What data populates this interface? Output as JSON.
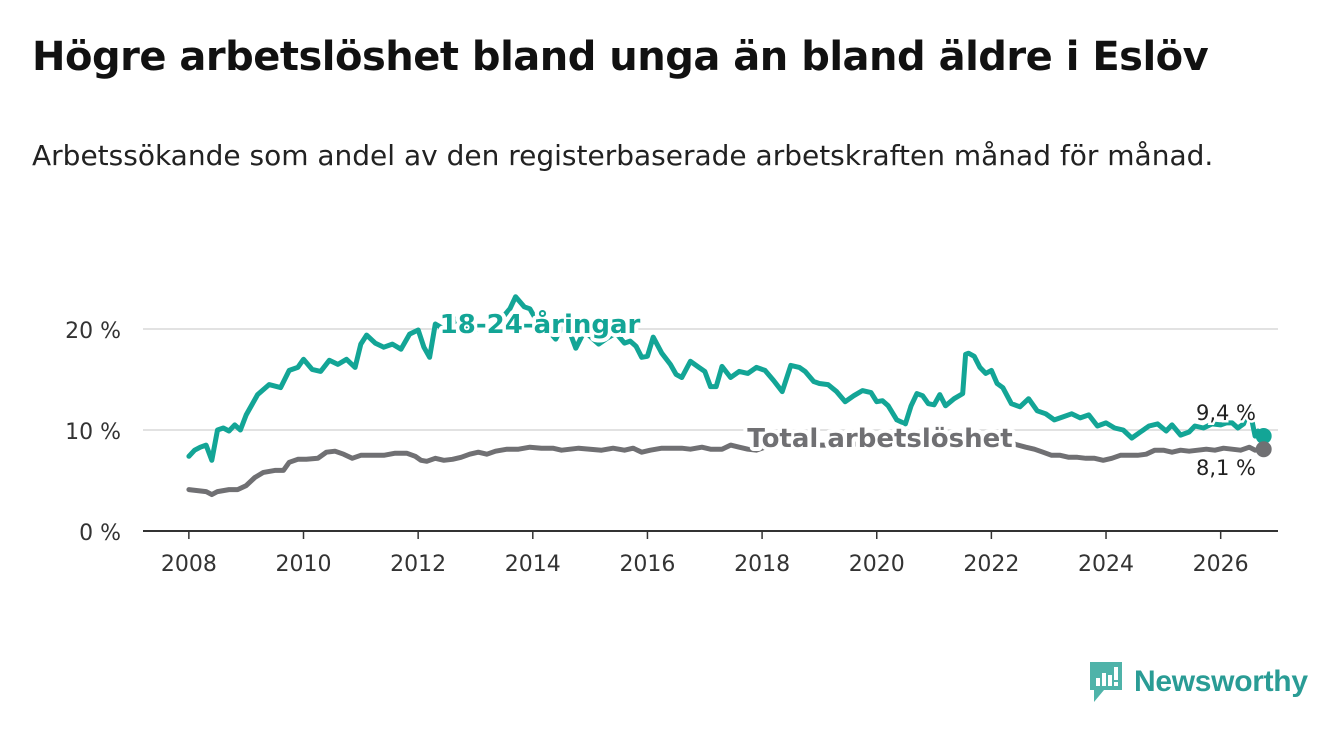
{
  "header": {
    "title": "Högre arbetslöshet bland unga än bland äldre i Eslöv",
    "subtitle": "Arbetssökande som andel av den registerbaserade arbetskraften månad för månad."
  },
  "brand": {
    "name": "Newsworthy"
  },
  "chart_data": {
    "type": "line",
    "x_ticks": [
      "2008",
      "2010",
      "2012",
      "2014",
      "2016",
      "2018",
      "2020",
      "2022",
      "2024",
      "2026"
    ],
    "y_ticks": [
      {
        "value": 0,
        "label": "0 %"
      },
      {
        "value": 10,
        "label": "10 %"
      },
      {
        "value": 20,
        "label": "20 %"
      }
    ],
    "xlim": [
      2007.2,
      2027.0
    ],
    "ylim": [
      0,
      20
    ],
    "series": [
      {
        "name": "18-24-åringar",
        "color": "#13a596",
        "end_label": "9,4 %",
        "points": [
          [
            2008.0,
            7.4
          ],
          [
            2008.1,
            8.0
          ],
          [
            2008.2,
            8.3
          ],
          [
            2008.3,
            8.5
          ],
          [
            2008.4,
            7.0
          ],
          [
            2008.5,
            10.0
          ],
          [
            2008.6,
            10.2
          ],
          [
            2008.7,
            9.9
          ],
          [
            2008.8,
            10.5
          ],
          [
            2008.9,
            10.0
          ],
          [
            2009.0,
            11.5
          ],
          [
            2009.2,
            13.5
          ],
          [
            2009.4,
            14.5
          ],
          [
            2009.6,
            14.2
          ],
          [
            2009.75,
            15.9
          ],
          [
            2009.9,
            16.2
          ],
          [
            2010.0,
            17.0
          ],
          [
            2010.15,
            16.0
          ],
          [
            2010.3,
            15.8
          ],
          [
            2010.45,
            16.9
          ],
          [
            2010.6,
            16.5
          ],
          [
            2010.75,
            17.0
          ],
          [
            2010.9,
            16.2
          ],
          [
            2011.0,
            18.5
          ],
          [
            2011.1,
            19.4
          ],
          [
            2011.25,
            18.6
          ],
          [
            2011.4,
            18.2
          ],
          [
            2011.55,
            18.5
          ],
          [
            2011.7,
            18.0
          ],
          [
            2011.85,
            19.5
          ],
          [
            2012.0,
            19.9
          ],
          [
            2012.1,
            18.2
          ],
          [
            2012.2,
            17.2
          ],
          [
            2012.3,
            20.5
          ],
          [
            2012.45,
            20.0
          ],
          [
            2012.6,
            21.2
          ],
          [
            2012.75,
            20.3
          ],
          [
            2012.9,
            19.8
          ],
          [
            2013.05,
            20.0
          ],
          [
            2013.2,
            20.1
          ],
          [
            2013.3,
            20.0
          ],
          [
            2013.45,
            21.0
          ],
          [
            2013.6,
            22.0
          ],
          [
            2013.7,
            23.2
          ],
          [
            2013.85,
            22.2
          ],
          [
            2013.95,
            22.0
          ],
          [
            2014.1,
            20.5
          ],
          [
            2014.25,
            20.0
          ],
          [
            2014.4,
            19.0
          ],
          [
            2014.5,
            20.1
          ],
          [
            2014.65,
            19.6
          ],
          [
            2014.75,
            18.1
          ],
          [
            2014.9,
            19.8
          ],
          [
            2015.05,
            19.0
          ],
          [
            2015.15,
            18.5
          ],
          [
            2015.3,
            19.1
          ],
          [
            2015.45,
            19.6
          ],
          [
            2015.6,
            18.6
          ],
          [
            2015.7,
            18.8
          ],
          [
            2015.8,
            18.3
          ],
          [
            2015.9,
            17.2
          ],
          [
            2016.0,
            17.3
          ],
          [
            2016.1,
            19.2
          ],
          [
            2016.25,
            17.6
          ],
          [
            2016.4,
            16.5
          ],
          [
            2016.5,
            15.5
          ],
          [
            2016.6,
            15.2
          ],
          [
            2016.75,
            16.8
          ],
          [
            2016.9,
            16.2
          ],
          [
            2017.0,
            15.8
          ],
          [
            2017.1,
            14.3
          ],
          [
            2017.2,
            14.3
          ],
          [
            2017.3,
            16.3
          ],
          [
            2017.45,
            15.2
          ],
          [
            2017.6,
            15.8
          ],
          [
            2017.75,
            15.6
          ],
          [
            2017.9,
            16.2
          ],
          [
            2018.05,
            15.9
          ],
          [
            2018.2,
            14.9
          ],
          [
            2018.35,
            13.8
          ],
          [
            2018.5,
            16.4
          ],
          [
            2018.65,
            16.2
          ],
          [
            2018.75,
            15.8
          ],
          [
            2018.9,
            14.8
          ],
          [
            2019.0,
            14.6
          ],
          [
            2019.15,
            14.5
          ],
          [
            2019.3,
            13.8
          ],
          [
            2019.45,
            12.8
          ],
          [
            2019.6,
            13.4
          ],
          [
            2019.75,
            13.9
          ],
          [
            2019.9,
            13.7
          ],
          [
            2020.0,
            12.8
          ],
          [
            2020.1,
            12.9
          ],
          [
            2020.2,
            12.4
          ],
          [
            2020.35,
            11.0
          ],
          [
            2020.5,
            10.6
          ],
          [
            2020.6,
            12.4
          ],
          [
            2020.7,
            13.6
          ],
          [
            2020.8,
            13.4
          ],
          [
            2020.9,
            12.6
          ],
          [
            2021.0,
            12.5
          ],
          [
            2021.1,
            13.5
          ],
          [
            2021.2,
            12.4
          ],
          [
            2021.35,
            13.1
          ],
          [
            2021.5,
            13.6
          ],
          [
            2021.55,
            17.5
          ],
          [
            2021.6,
            17.6
          ],
          [
            2021.7,
            17.3
          ],
          [
            2021.8,
            16.2
          ],
          [
            2021.9,
            15.6
          ],
          [
            2022.0,
            15.9
          ],
          [
            2022.1,
            14.6
          ],
          [
            2022.2,
            14.2
          ],
          [
            2022.35,
            12.6
          ],
          [
            2022.5,
            12.3
          ],
          [
            2022.65,
            13.1
          ],
          [
            2022.8,
            11.9
          ],
          [
            2022.95,
            11.6
          ],
          [
            2023.1,
            11.0
          ],
          [
            2023.25,
            11.3
          ],
          [
            2023.4,
            11.6
          ],
          [
            2023.55,
            11.2
          ],
          [
            2023.7,
            11.5
          ],
          [
            2023.85,
            10.4
          ],
          [
            2024.0,
            10.7
          ],
          [
            2024.15,
            10.2
          ],
          [
            2024.3,
            10.0
          ],
          [
            2024.45,
            9.2
          ],
          [
            2024.6,
            9.8
          ],
          [
            2024.75,
            10.4
          ],
          [
            2024.9,
            10.6
          ],
          [
            2025.05,
            9.9
          ],
          [
            2025.15,
            10.5
          ],
          [
            2025.3,
            9.5
          ],
          [
            2025.45,
            9.8
          ],
          [
            2025.55,
            10.4
          ],
          [
            2025.7,
            10.2
          ],
          [
            2025.85,
            10.6
          ],
          [
            2026.0,
            10.5
          ],
          [
            2026.1,
            10.7
          ],
          [
            2026.2,
            10.7
          ],
          [
            2026.3,
            10.2
          ],
          [
            2026.4,
            10.6
          ],
          [
            2026.5,
            12.2
          ],
          [
            2026.6,
            9.4
          ],
          [
            2026.65,
            9.9
          ],
          [
            2026.75,
            9.4
          ]
        ]
      },
      {
        "name": "Total arbetslöshet",
        "color": "#707073",
        "end_label": "8,1 %",
        "points": [
          [
            2008.0,
            4.1
          ],
          [
            2008.15,
            4.0
          ],
          [
            2008.3,
            3.9
          ],
          [
            2008.4,
            3.6
          ],
          [
            2008.5,
            3.9
          ],
          [
            2008.7,
            4.1
          ],
          [
            2008.85,
            4.1
          ],
          [
            2009.0,
            4.5
          ],
          [
            2009.15,
            5.3
          ],
          [
            2009.3,
            5.8
          ],
          [
            2009.5,
            6.0
          ],
          [
            2009.65,
            6.0
          ],
          [
            2009.75,
            6.8
          ],
          [
            2009.9,
            7.1
          ],
          [
            2010.05,
            7.1
          ],
          [
            2010.25,
            7.2
          ],
          [
            2010.4,
            7.8
          ],
          [
            2010.55,
            7.9
          ],
          [
            2010.7,
            7.6
          ],
          [
            2010.85,
            7.2
          ],
          [
            2011.0,
            7.5
          ],
          [
            2011.2,
            7.5
          ],
          [
            2011.4,
            7.5
          ],
          [
            2011.6,
            7.7
          ],
          [
            2011.8,
            7.7
          ],
          [
            2011.95,
            7.4
          ],
          [
            2012.05,
            7.0
          ],
          [
            2012.15,
            6.9
          ],
          [
            2012.3,
            7.2
          ],
          [
            2012.45,
            7.0
          ],
          [
            2012.6,
            7.1
          ],
          [
            2012.75,
            7.3
          ],
          [
            2012.9,
            7.6
          ],
          [
            2013.05,
            7.8
          ],
          [
            2013.2,
            7.6
          ],
          [
            2013.35,
            7.9
          ],
          [
            2013.55,
            8.1
          ],
          [
            2013.75,
            8.1
          ],
          [
            2013.95,
            8.3
          ],
          [
            2014.15,
            8.2
          ],
          [
            2014.35,
            8.2
          ],
          [
            2014.5,
            8.0
          ],
          [
            2014.65,
            8.1
          ],
          [
            2014.8,
            8.2
          ],
          [
            2015.0,
            8.1
          ],
          [
            2015.2,
            8.0
          ],
          [
            2015.4,
            8.2
          ],
          [
            2015.6,
            8.0
          ],
          [
            2015.75,
            8.2
          ],
          [
            2015.9,
            7.8
          ],
          [
            2016.05,
            8.0
          ],
          [
            2016.25,
            8.2
          ],
          [
            2016.45,
            8.2
          ],
          [
            2016.6,
            8.2
          ],
          [
            2016.75,
            8.1
          ],
          [
            2016.95,
            8.3
          ],
          [
            2017.1,
            8.1
          ],
          [
            2017.3,
            8.1
          ],
          [
            2017.45,
            8.5
          ],
          [
            2017.6,
            8.3
          ],
          [
            2017.75,
            8.1
          ],
          [
            2017.9,
            8.0
          ],
          [
            2018.05,
            8.3
          ],
          [
            2018.25,
            8.5
          ],
          [
            2018.4,
            8.6
          ],
          [
            2018.55,
            8.5
          ],
          [
            2018.7,
            8.3
          ],
          [
            2018.85,
            8.4
          ],
          [
            2019.0,
            8.5
          ],
          [
            2019.2,
            8.5
          ],
          [
            2019.4,
            8.6
          ],
          [
            2019.6,
            8.6
          ],
          [
            2019.8,
            8.6
          ],
          [
            2020.0,
            8.5
          ],
          [
            2020.2,
            8.6
          ],
          [
            2020.4,
            8.4
          ],
          [
            2020.6,
            8.6
          ],
          [
            2020.8,
            8.6
          ],
          [
            2021.0,
            8.6
          ],
          [
            2021.2,
            8.6
          ],
          [
            2021.4,
            8.6
          ],
          [
            2021.6,
            8.6
          ],
          [
            2021.8,
            8.6
          ],
          [
            2022.0,
            8.6
          ],
          [
            2022.2,
            8.6
          ],
          [
            2022.4,
            8.6
          ],
          [
            2022.6,
            8.3
          ],
          [
            2022.75,
            8.1
          ],
          [
            2022.9,
            7.8
          ],
          [
            2023.05,
            7.5
          ],
          [
            2023.2,
            7.5
          ],
          [
            2023.35,
            7.3
          ],
          [
            2023.5,
            7.3
          ],
          [
            2023.65,
            7.2
          ],
          [
            2023.8,
            7.2
          ],
          [
            2023.95,
            7.0
          ],
          [
            2024.1,
            7.2
          ],
          [
            2024.25,
            7.5
          ],
          [
            2024.4,
            7.5
          ],
          [
            2024.55,
            7.5
          ],
          [
            2024.7,
            7.6
          ],
          [
            2024.85,
            8.0
          ],
          [
            2025.0,
            8.0
          ],
          [
            2025.15,
            7.8
          ],
          [
            2025.3,
            8.0
          ],
          [
            2025.45,
            7.9
          ],
          [
            2025.6,
            8.0
          ],
          [
            2025.75,
            8.1
          ],
          [
            2025.9,
            8.0
          ],
          [
            2026.05,
            8.2
          ],
          [
            2026.2,
            8.1
          ],
          [
            2026.35,
            8.0
          ],
          [
            2026.5,
            8.3
          ],
          [
            2026.6,
            8.0
          ],
          [
            2026.7,
            8.1
          ],
          [
            2026.75,
            8.1
          ]
        ]
      }
    ]
  }
}
